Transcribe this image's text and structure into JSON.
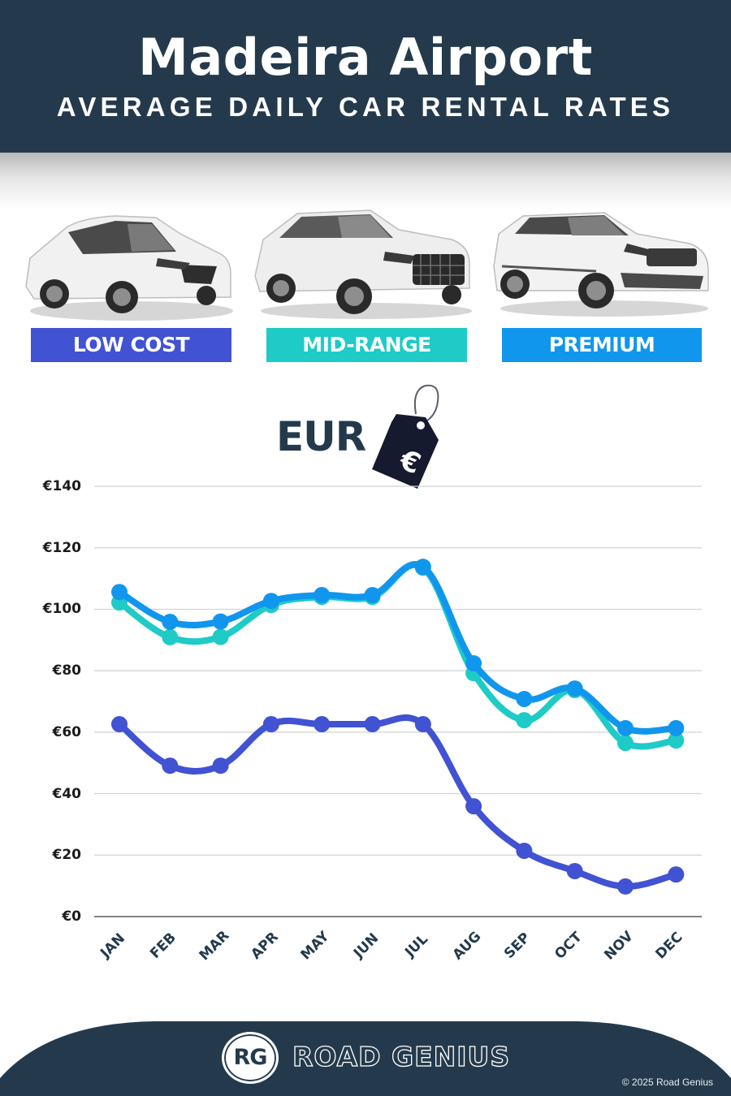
{
  "header": {
    "title": "Madeira Airport",
    "subtitle": "AVERAGE DAILY CAR RENTAL RATES"
  },
  "categories": [
    {
      "label": "LOW COST",
      "color": "#4152d3",
      "car": "hatchback-car"
    },
    {
      "label": "MID-RANGE",
      "color": "#1ecbc6",
      "car": "compact-suv-car"
    },
    {
      "label": "PREMIUM",
      "color": "#1196ee",
      "car": "luxury-suv-car"
    }
  ],
  "currency": {
    "label": "EUR",
    "tag_symbol": "€"
  },
  "chart_data": {
    "type": "line",
    "title": "Madeira Airport Average Daily Car Rental Rates",
    "xlabel": "",
    "ylabel": "EUR",
    "categories": [
      "JAN",
      "FEB",
      "MAR",
      "APR",
      "MAY",
      "JUN",
      "JUL",
      "AUG",
      "SEP",
      "OCT",
      "NOV",
      "DEC"
    ],
    "series": [
      {
        "name": "Low Cost",
        "color": "#4152d3",
        "values": [
          62.6,
          49.1,
          49.1,
          62.6,
          62.6,
          62.6,
          62.6,
          35.9,
          21.4,
          14.8,
          9.8,
          13.7
        ]
      },
      {
        "name": "Mid-Range",
        "color": "#1ecbc6",
        "values": [
          102.2,
          90.9,
          91.0,
          101.4,
          104.0,
          104.0,
          113.5,
          79.2,
          63.9,
          73.7,
          56.5,
          57.3
        ]
      },
      {
        "name": "Premium",
        "color": "#1196ee",
        "values": [
          105.6,
          95.9,
          96.0,
          102.7,
          104.6,
          104.6,
          113.8,
          82.4,
          70.8,
          74.2,
          61.3,
          61.3
        ]
      }
    ],
    "yticks": [
      "€0",
      "€20",
      "€40",
      "€60",
      "€80",
      "€100",
      "€120",
      "€140"
    ],
    "ylim": [
      0,
      140
    ],
    "grid": true,
    "legend": "category labels above chart (LOW COST, MID-RANGE, PREMIUM)"
  },
  "footer": {
    "logo_text": "RG",
    "brand": "ROAD GENIUS",
    "copyright": "© 2025 Road Genius",
    "background": "#243a4c"
  }
}
